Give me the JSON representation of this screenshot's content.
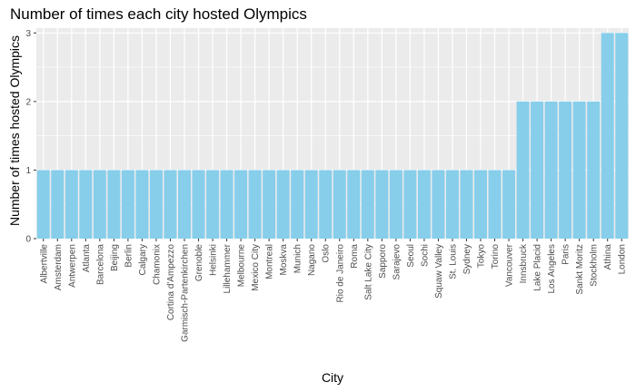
{
  "chart_data": {
    "type": "bar",
    "title": "Number of times each city hosted Olympics",
    "xlabel": "City",
    "ylabel": "Number of times hosted Olympics",
    "ylim": [
      0,
      3.07
    ],
    "yticks": [
      0,
      1,
      2,
      3
    ],
    "grid": true,
    "bar_color": "#87CEEB",
    "panel_color": "#EBEBEB",
    "categories": [
      "Albertville",
      "Amsterdam",
      "Antwerpen",
      "Atlanta",
      "Barcelona",
      "Beijing",
      "Berlin",
      "Calgary",
      "Chamonix",
      "Cortina d'Ampezzo",
      "Garmisch-Partenkirchen",
      "Grenoble",
      "Helsinki",
      "Lillehammer",
      "Melbourne",
      "Mexico City",
      "Montreal",
      "Moskva",
      "Munich",
      "Nagano",
      "Oslo",
      "Rio de Janeiro",
      "Roma",
      "Salt Lake City",
      "Sapporo",
      "Sarajevo",
      "Seoul",
      "Sochi",
      "Squaw Valley",
      "St. Louis",
      "Sydney",
      "Tokyo",
      "Torino",
      "Vancouver",
      "Innsbruck",
      "Lake Placid",
      "Los Angeles",
      "Paris",
      "Sankt Moritz",
      "Stockholm",
      "Athina",
      "London"
    ],
    "values": [
      1,
      1,
      1,
      1,
      1,
      1,
      1,
      1,
      1,
      1,
      1,
      1,
      1,
      1,
      1,
      1,
      1,
      1,
      1,
      1,
      1,
      1,
      1,
      1,
      1,
      1,
      1,
      1,
      1,
      1,
      1,
      1,
      1,
      1,
      2,
      2,
      2,
      2,
      2,
      2,
      3,
      3
    ]
  }
}
